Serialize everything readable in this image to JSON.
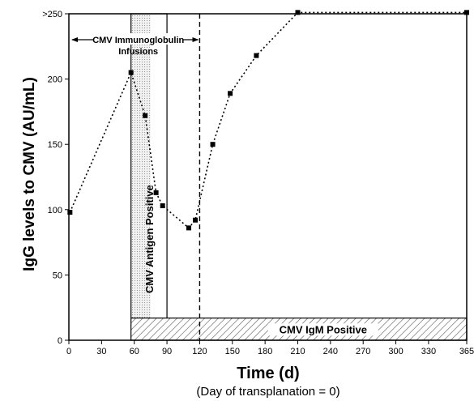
{
  "chart_data": {
    "type": "line",
    "xlabel": "Time (d)",
    "x_sublabel": "(Day of transplanation = 0)",
    "ylabel": "IgG levels to CMV (AU/mL)",
    "xlim": [
      0,
      365
    ],
    "ylim": [
      0,
      250
    ],
    "x_ticks": [
      0,
      30,
      60,
      90,
      120,
      150,
      180,
      210,
      240,
      270,
      300,
      330,
      365
    ],
    "y_ticks": [
      {
        "value": 0,
        "label": "0"
      },
      {
        "value": 50,
        "label": "50"
      },
      {
        "value": 100,
        "label": "100"
      },
      {
        "value": 150,
        "label": "150"
      },
      {
        "value": 200,
        "label": "200"
      },
      {
        "value": 250,
        "label": ">250"
      }
    ],
    "series": [
      {
        "x": [
          1,
          57,
          70,
          80,
          86,
          110,
          116,
          132,
          148,
          172,
          210,
          365
        ],
        "y": [
          98,
          205,
          172,
          113,
          103,
          86,
          92,
          150,
          189,
          218,
          251,
          251
        ]
      }
    ],
    "annotations": {
      "infusions_line1": "CMV Immunoglobulin",
      "infusions_line2": "Infusions",
      "infusions_range": [
        0,
        120
      ],
      "antigen_label": "CMV Antigen Positive",
      "antigen_range": [
        57,
        90
      ],
      "antigen_shaded_range": [
        57,
        75
      ],
      "dashed_line_x": 120,
      "igm_label": "CMV IgM Positive",
      "igm_range": [
        57,
        365
      ],
      "igm_y_top": 17
    }
  }
}
